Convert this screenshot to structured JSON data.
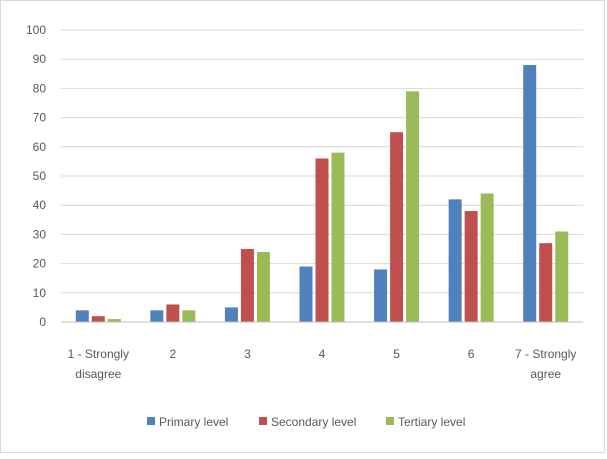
{
  "chart_data": {
    "type": "bar",
    "title": "",
    "xlabel": "",
    "ylabel": "",
    "ylim": [
      0,
      100
    ],
    "yticks": [
      0,
      10,
      20,
      30,
      40,
      50,
      60,
      70,
      80,
      90,
      100
    ],
    "grid": true,
    "legend_position": "bottom",
    "categories": [
      [
        "1 - Strongly",
        "disagree"
      ],
      [
        "2"
      ],
      [
        "3"
      ],
      [
        "4"
      ],
      [
        "5"
      ],
      [
        "6"
      ],
      [
        "7 - Strongly",
        "agree"
      ]
    ],
    "series": [
      {
        "name": "Primary level",
        "color": "#4f81bd",
        "values": [
          4,
          4,
          5,
          19,
          18,
          42,
          88
        ]
      },
      {
        "name": "Secondary level",
        "color": "#c0504d",
        "values": [
          2,
          6,
          25,
          56,
          65,
          38,
          27
        ]
      },
      {
        "name": "Tertiary level",
        "color": "#9bbb59",
        "values": [
          1,
          4,
          24,
          58,
          79,
          44,
          31
        ]
      }
    ],
    "colors": {
      "grid": "#d9d9d9",
      "axis": "#bfbfbf",
      "text": "#595959"
    }
  }
}
